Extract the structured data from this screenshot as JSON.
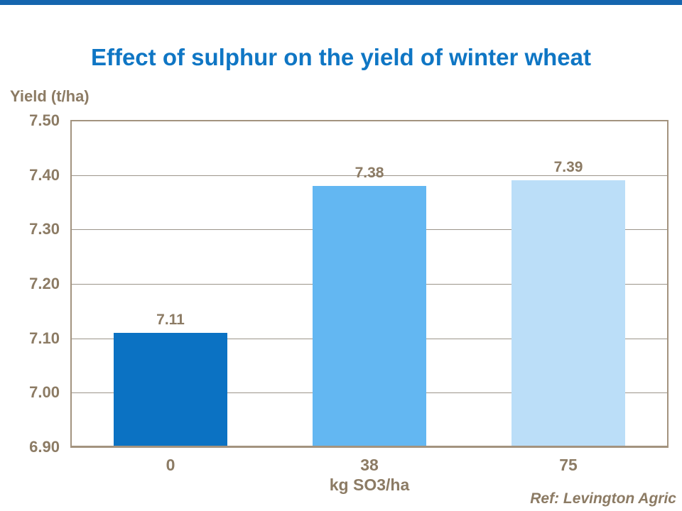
{
  "page": {
    "top_accent_bar": true
  },
  "colors": {
    "title_blue": "#0F76C4",
    "top_bar_blue": "#1565AE",
    "text_brown": "#8C7B64",
    "axis_line_tan": "#A3937F",
    "gridline_gray": "#9C958A",
    "bar_colors": [
      "#0B72C3",
      "#63B7F2",
      "#BBDEF8"
    ]
  },
  "chart_data": {
    "type": "bar",
    "title": "Effect of sulphur on the yield of winter wheat",
    "categories": [
      "0",
      "38",
      "75"
    ],
    "values": [
      7.11,
      7.38,
      7.39
    ],
    "value_labels": [
      "7.11",
      "7.38",
      "7.39"
    ],
    "xlabel": "kg SO3/ha",
    "ylabel": "Yield (t/ha)",
    "ylim": [
      6.9,
      7.5
    ],
    "ytick_step": 0.1,
    "ytick_labels": [
      "7.50",
      "7.40",
      "7.30",
      "7.20",
      "7.10",
      "7.00",
      "6.90"
    ],
    "grid": "horizontal-only",
    "legend": "none",
    "annotation": "Ref: Levington Agric"
  }
}
